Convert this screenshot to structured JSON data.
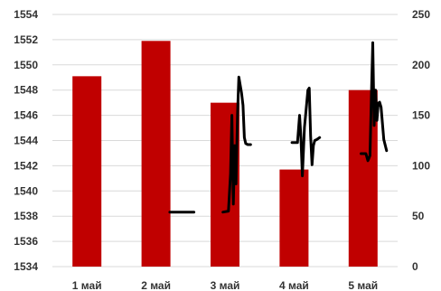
{
  "chart_data": {
    "type": "bar",
    "title": "",
    "xlabel": "",
    "ylabel": "",
    "categories": [
      "1 май",
      "2 май",
      "3 май",
      "4 май",
      "5 май"
    ],
    "y_ticks": [
      "1534",
      "1536",
      "1538",
      "1540",
      "1542",
      "1544",
      "1546",
      "1548",
      "1550",
      "1552",
      "1554"
    ],
    "y2_ticks": [
      "0",
      "50",
      "100",
      "150",
      "200",
      "250"
    ],
    "ylim": [
      1534,
      1554
    ],
    "y2lim": [
      0,
      250
    ],
    "grid": true,
    "legend": "none",
    "series": [
      {
        "type": "bar",
        "axis": "left",
        "color": "#c00000",
        "values": [
          1549.1,
          1551.9,
          1547.0,
          1541.7,
          1548.0
        ]
      },
      {
        "type": "line",
        "axis": "right",
        "color": "#000000",
        "segments": [
          {
            "x": [
              1.7,
              2.05
            ],
            "y": [
              54,
              54
            ]
          },
          {
            "x": [
              2.47,
              2.55,
              2.58,
              2.6,
              2.62,
              2.64,
              2.66,
              2.68,
              2.7,
              2.72,
              2.74,
              2.76,
              2.78,
              2.8,
              2.83,
              2.87
            ],
            "y": [
              54,
              55,
              92,
              150,
              62,
              120,
              82,
              150,
              188,
              180,
              172,
              160,
              128,
              122,
              121,
              121
            ]
          },
          {
            "x": [
              3.47,
              3.55,
              3.58,
              3.6,
              3.62,
              3.65,
              3.68,
              3.7,
              3.72,
              3.74,
              3.76,
              3.78,
              3.8,
              3.83,
              3.87
            ],
            "y": [
              123,
              123,
              150,
              128,
              90,
              138,
              160,
              175,
              177,
              130,
              101,
              120,
              125,
              126,
              128
            ]
          },
          {
            "x": [
              4.47,
              4.54,
              4.57,
              4.6,
              4.62,
              4.64,
              4.66,
              4.68,
              4.7,
              4.72,
              4.74,
              4.76,
              4.8,
              4.84
            ],
            "y": [
              112,
              112,
              105,
              110,
              170,
              222,
              140,
              175,
              145,
              162,
              163,
              158,
              126,
              115
            ]
          }
        ]
      }
    ]
  }
}
